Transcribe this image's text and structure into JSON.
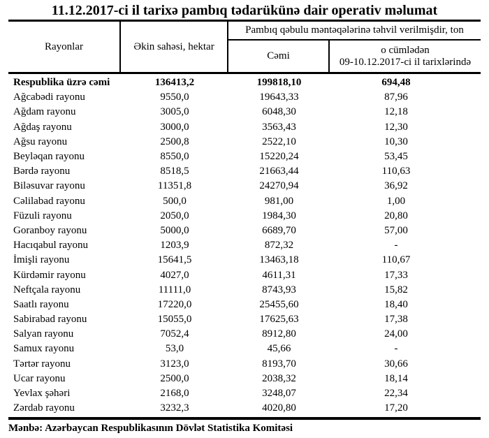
{
  "title": "11.12.2017-ci il tarixə pambıq tədarükünə dair operativ məlumat",
  "table": {
    "header": {
      "rayonlar": "Rayonlar",
      "ekin_sahesi": "Əkin sahəsi, hektar",
      "group": "Pambıq qəbulu məntəqələrinə təhvil verilmişdir, ton",
      "cemi": "Cəmi",
      "o_cumleden_line1": "o cümlədən",
      "o_cumleden_line2": "09-10.12.2017-ci il tarixlərində"
    },
    "rows": [
      {
        "name": "Respublika üzrə cəmi",
        "area": "136413,2",
        "total": "199818,10",
        "recent": "694,48"
      },
      {
        "name": "Ağcabədi rayonu",
        "area": "9550,0",
        "total": "19643,33",
        "recent": "87,96"
      },
      {
        "name": "Ağdam rayonu",
        "area": "3005,0",
        "total": "6048,30",
        "recent": "12,18"
      },
      {
        "name": "Ağdaş rayonu",
        "area": "3000,0",
        "total": "3563,43",
        "recent": "12,30"
      },
      {
        "name": "Ağsu rayonu",
        "area": "2500,8",
        "total": "2522,10",
        "recent": "10,30"
      },
      {
        "name": "Beyləqan rayonu",
        "area": "8550,0",
        "total": "15220,24",
        "recent": "53,45"
      },
      {
        "name": "Bərdə rayonu",
        "area": "8518,5",
        "total": "21663,44",
        "recent": "110,63"
      },
      {
        "name": "Biləsuvar rayonu",
        "area": "11351,8",
        "total": "24270,94",
        "recent": "36,92"
      },
      {
        "name": "Cəlilabad rayonu",
        "area": "500,0",
        "total": "981,00",
        "recent": "1,00"
      },
      {
        "name": "Füzuli rayonu",
        "area": "2050,0",
        "total": "1984,30",
        "recent": "20,80"
      },
      {
        "name": "Goranboy rayonu",
        "area": "5000,0",
        "total": "6689,70",
        "recent": "57,00"
      },
      {
        "name": "Hacıqabul rayonu",
        "area": "1203,9",
        "total": "872,32",
        "recent": "-"
      },
      {
        "name": "İmişli rayonu",
        "area": "15641,5",
        "total": "13463,18",
        "recent": "110,67"
      },
      {
        "name": "Kürdəmir rayonu",
        "area": "4027,0",
        "total": "4611,31",
        "recent": "17,33"
      },
      {
        "name": "Neftçala rayonu",
        "area": "11111,0",
        "total": "8743,93",
        "recent": "15,82"
      },
      {
        "name": "Saatlı rayonu",
        "area": "17220,0",
        "total": "25455,60",
        "recent": "18,40"
      },
      {
        "name": "Sabirabad rayonu",
        "area": "15055,0",
        "total": "17625,63",
        "recent": "17,38"
      },
      {
        "name": "Salyan rayonu",
        "area": "7052,4",
        "total": "8912,80",
        "recent": "24,00"
      },
      {
        "name": "Samux rayonu",
        "area": "53,0",
        "total": "45,66",
        "recent": "-"
      },
      {
        "name": "Tərtər rayonu",
        "area": "3123,0",
        "total": "8193,70",
        "recent": "30,66"
      },
      {
        "name": "Ucar rayonu",
        "area": "2500,0",
        "total": "2038,32",
        "recent": "18,14"
      },
      {
        "name": "Yevlax şəhəri",
        "area": "2168,0",
        "total": "3248,07",
        "recent": "22,34"
      },
      {
        "name": "Zərdab rayonu",
        "area": "3232,3",
        "total": "4020,80",
        "recent": "17,20"
      }
    ]
  },
  "footer": "Mənbə: Azərbaycan Respublikasının Dövlət Statistika Komitəsi"
}
